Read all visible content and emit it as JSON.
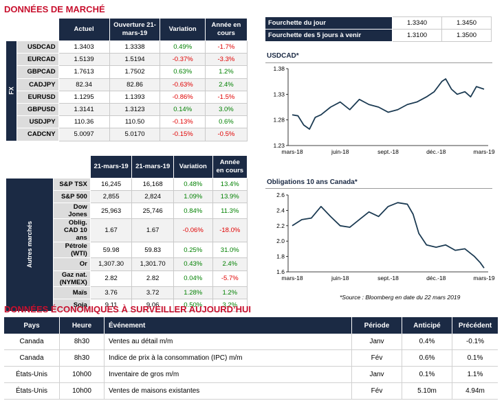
{
  "market_title": "DONNÉES DE MARCHÉ",
  "fx_table": {
    "headers": [
      "Actuel",
      "Ouverture 21-mars-19",
      "Variation",
      "Année en cours"
    ],
    "side_label": "FX",
    "rows": [
      {
        "name": "USDCAD",
        "actuel": "1.3403",
        "ouverture": "1.3338",
        "variation": "0.49%",
        "annee": "-1.7%"
      },
      {
        "name": "EURCAD",
        "actuel": "1.5139",
        "ouverture": "1.5194",
        "variation": "-0.37%",
        "annee": "-3.3%"
      },
      {
        "name": "GBPCAD",
        "actuel": "1.7613",
        "ouverture": "1.7502",
        "variation": "0.63%",
        "annee": "1.2%"
      },
      {
        "name": "CADJPY",
        "actuel": "82.34",
        "ouverture": "82.86",
        "variation": "-0.63%",
        "annee": "2.4%"
      },
      {
        "name": "EURUSD",
        "actuel": "1.1295",
        "ouverture": "1.1393",
        "variation": "-0.86%",
        "annee": "-1.5%"
      },
      {
        "name": "GBPUSD",
        "actuel": "1.3141",
        "ouverture": "1.3123",
        "variation": "0.14%",
        "annee": "3.0%"
      },
      {
        "name": "USDJPY",
        "actuel": "110.36",
        "ouverture": "110.50",
        "variation": "-0.13%",
        "annee": "0.6%"
      },
      {
        "name": "CADCNY",
        "actuel": "5.0097",
        "ouverture": "5.0170",
        "variation": "-0.15%",
        "annee": "-0.5%"
      }
    ]
  },
  "other_table": {
    "headers": [
      "21-mars-19",
      "21-mars-19",
      "Variation",
      "Année en cours"
    ],
    "side_label": "Autres marchés",
    "rows": [
      {
        "name": "S&P TSX",
        "actuel": "16,245",
        "ouverture": "16,168",
        "variation": "0.48%",
        "annee": "13.4%"
      },
      {
        "name": "S&P 500",
        "actuel": "2,855",
        "ouverture": "2,824",
        "variation": "1.09%",
        "annee": "13.9%"
      },
      {
        "name": "Dow Jones",
        "actuel": "25,963",
        "ouverture": "25,746",
        "variation": "0.84%",
        "annee": "11.3%"
      },
      {
        "name": "Oblig. CAD 10 ans",
        "actuel": "1.67",
        "ouverture": "1.67",
        "variation": "-0.06%",
        "annee": "-18.0%"
      },
      {
        "name": "Pétrole (WTI)",
        "actuel": "59.98",
        "ouverture": "59.83",
        "variation": "0.25%",
        "annee": "31.0%"
      },
      {
        "name": "Or",
        "actuel": "1,307.30",
        "ouverture": "1,301.70",
        "variation": "0.43%",
        "annee": "2.4%"
      },
      {
        "name": "Gaz nat. (NYMEX)",
        "actuel": "2.82",
        "ouverture": "2.82",
        "variation": "0.04%",
        "annee": "-5.7%"
      },
      {
        "name": "Maïs",
        "actuel": "3.76",
        "ouverture": "3.72",
        "variation": "1.28%",
        "annee": "1.2%"
      },
      {
        "name": "Soja",
        "actuel": "9.11",
        "ouverture": "9.06",
        "variation": "0.50%",
        "annee": "3.2%"
      }
    ]
  },
  "range_table": [
    {
      "label": "Fourchette du jour",
      "low": "1.3340",
      "high": "1.3450"
    },
    {
      "label": "Fourchette des 5 jours à venir",
      "low": "1.3100",
      "high": "1.3500"
    }
  ],
  "chart_data": [
    {
      "type": "line",
      "title": "USDCAD*",
      "ylim": [
        1.23,
        1.38
      ],
      "yticks": [
        "1.38",
        "1.33",
        "1.28",
        "1.23"
      ],
      "xticks": [
        "mars-18",
        "juin-18",
        "sept.-18",
        "déc.-18",
        "mars-19"
      ],
      "color": "#1b3a52",
      "series": [
        {
          "x": [
            0,
            0.03,
            0.06,
            0.09,
            0.12,
            0.15,
            0.2,
            0.25,
            0.3,
            0.35,
            0.4,
            0.45,
            0.5,
            0.55,
            0.6,
            0.65,
            0.7,
            0.74,
            0.78,
            0.8,
            0.83,
            0.86,
            0.9,
            0.93,
            0.96,
            1.0
          ],
          "values": [
            1.29,
            1.288,
            1.27,
            1.262,
            1.285,
            1.29,
            1.305,
            1.315,
            1.3,
            1.32,
            1.31,
            1.305,
            1.295,
            1.3,
            1.31,
            1.315,
            1.325,
            1.335,
            1.355,
            1.36,
            1.34,
            1.33,
            1.335,
            1.325,
            1.345,
            1.34
          ]
        }
      ]
    },
    {
      "type": "line",
      "title": "Obligations 10 ans Canada*",
      "ylim": [
        1.6,
        2.6
      ],
      "yticks": [
        "2.6",
        "2.4",
        "2.2",
        "2.0",
        "1.8",
        "1.6"
      ],
      "xticks": [
        "mars-18",
        "juin-18",
        "sept.-18",
        "déc.-18",
        "mars-19"
      ],
      "color": "#1b3a52",
      "series": [
        {
          "x": [
            0,
            0.05,
            0.1,
            0.15,
            0.2,
            0.25,
            0.3,
            0.35,
            0.4,
            0.45,
            0.5,
            0.55,
            0.6,
            0.63,
            0.66,
            0.7,
            0.75,
            0.8,
            0.85,
            0.9,
            0.95,
            0.98,
            1.0
          ],
          "values": [
            2.2,
            2.28,
            2.3,
            2.45,
            2.32,
            2.2,
            2.18,
            2.28,
            2.38,
            2.32,
            2.45,
            2.5,
            2.48,
            2.35,
            2.1,
            1.95,
            1.92,
            1.95,
            1.88,
            1.9,
            1.8,
            1.72,
            1.65
          ]
        }
      ]
    }
  ],
  "source_note": "*Source : Bloomberg en date du  22 mars 2019",
  "eco_title": "DONNÉES ÉCONOMIQUES À SURVEILLER AUJOURD’HUI",
  "eco_table": {
    "headers": [
      "Pays",
      "Heure",
      "Événement",
      "Période",
      "Anticipé",
      "Précédent"
    ],
    "rows": [
      {
        "pays": "Canada",
        "heure": "8h30",
        "evenement": "Ventes au détail m/m",
        "periode": "Janv",
        "anticipe": "0.4%",
        "precedent": "-0.1%"
      },
      {
        "pays": "Canada",
        "heure": "8h30",
        "evenement": "Indice de prix à la consommation (IPC) m/m",
        "periode": "Fév",
        "anticipe": "0.6%",
        "precedent": "0.1%"
      },
      {
        "pays": "États-Unis",
        "heure": "10h00",
        "evenement": "Inventaire de gros m/m",
        "periode": "Janv",
        "anticipe": "0.1%",
        "precedent": "1.1%"
      },
      {
        "pays": "États-Unis",
        "heure": "10h00",
        "evenement": "Ventes de maisons existantes",
        "periode": "Fév",
        "anticipe": "5.10m",
        "precedent": "4.94m"
      }
    ]
  }
}
